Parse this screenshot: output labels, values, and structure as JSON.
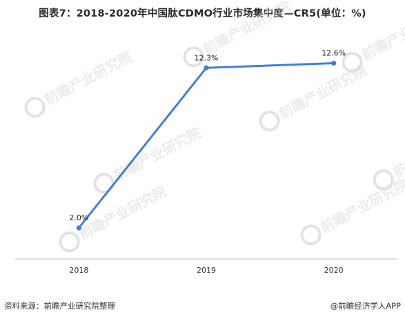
{
  "chart_data": {
    "type": "line",
    "title": "图表7：2018-2020年中国肽CDMO行业市场集中度—CR5(单位：%)",
    "categories": [
      "2018",
      "2019",
      "2020"
    ],
    "series": [
      {
        "values": [
          2.0,
          12.3,
          12.6
        ],
        "data_labels": [
          "2.0%",
          "12.3%",
          "12.6%"
        ]
      }
    ],
    "xlabel": "",
    "ylabel": "",
    "ylim": [
      0,
      14
    ],
    "grid": false,
    "colors": {
      "line": "#3f7fdb",
      "axis": "#bfbfbf"
    }
  },
  "footer": {
    "source": "资料来源：前瞻产业研究院整理",
    "brand": "@前瞻经济学人APP"
  },
  "watermark": {
    "text": "前瞻产业研究院",
    "icon": "qianzhan-logo-icon"
  }
}
